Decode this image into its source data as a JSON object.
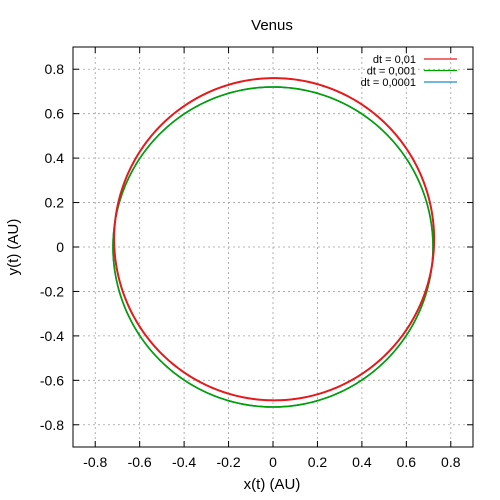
{
  "chart_data": {
    "type": "line",
    "title": "Venus",
    "xlabel": "x(t) (AU)",
    "ylabel": "y(t) (AU)",
    "xlim": [
      -0.9,
      0.9
    ],
    "ylim": [
      -0.9,
      0.9
    ],
    "xticks": [
      -0.8,
      -0.6,
      -0.4,
      -0.2,
      0,
      0.2,
      0.4,
      0.6,
      0.8
    ],
    "yticks": [
      -0.8,
      -0.6,
      -0.4,
      -0.2,
      0,
      0.2,
      0.4,
      0.6,
      0.8
    ],
    "xtick_labels": [
      "-0.8",
      "-0.6",
      "-0.4",
      "-0.2",
      "0",
      "0.2",
      "0.4",
      "0.6",
      "0.8"
    ],
    "ytick_labels": [
      "-0.8",
      "-0.6",
      "-0.4",
      "-0.2",
      "0",
      "0.2",
      "0.4",
      "0.6",
      "0.8"
    ],
    "grid": true,
    "legend_position": "top-right",
    "series": [
      {
        "name": "dt = 0,01",
        "color": "#e41a1c",
        "orbit": {
          "center": [
            0.005,
            0.035
          ],
          "rx": 0.72,
          "ry": 0.725
        }
      },
      {
        "name": "dt = 0,001",
        "color": "#00a000",
        "orbit": {
          "center": [
            0.0,
            0.0
          ],
          "rx": 0.72,
          "ry": 0.72
        }
      },
      {
        "name": "dt = 0,0001",
        "color": "#1f8ec2",
        "orbit": {
          "center": [
            0.0,
            0.0
          ],
          "rx": 0.72,
          "ry": 0.72
        }
      }
    ]
  }
}
